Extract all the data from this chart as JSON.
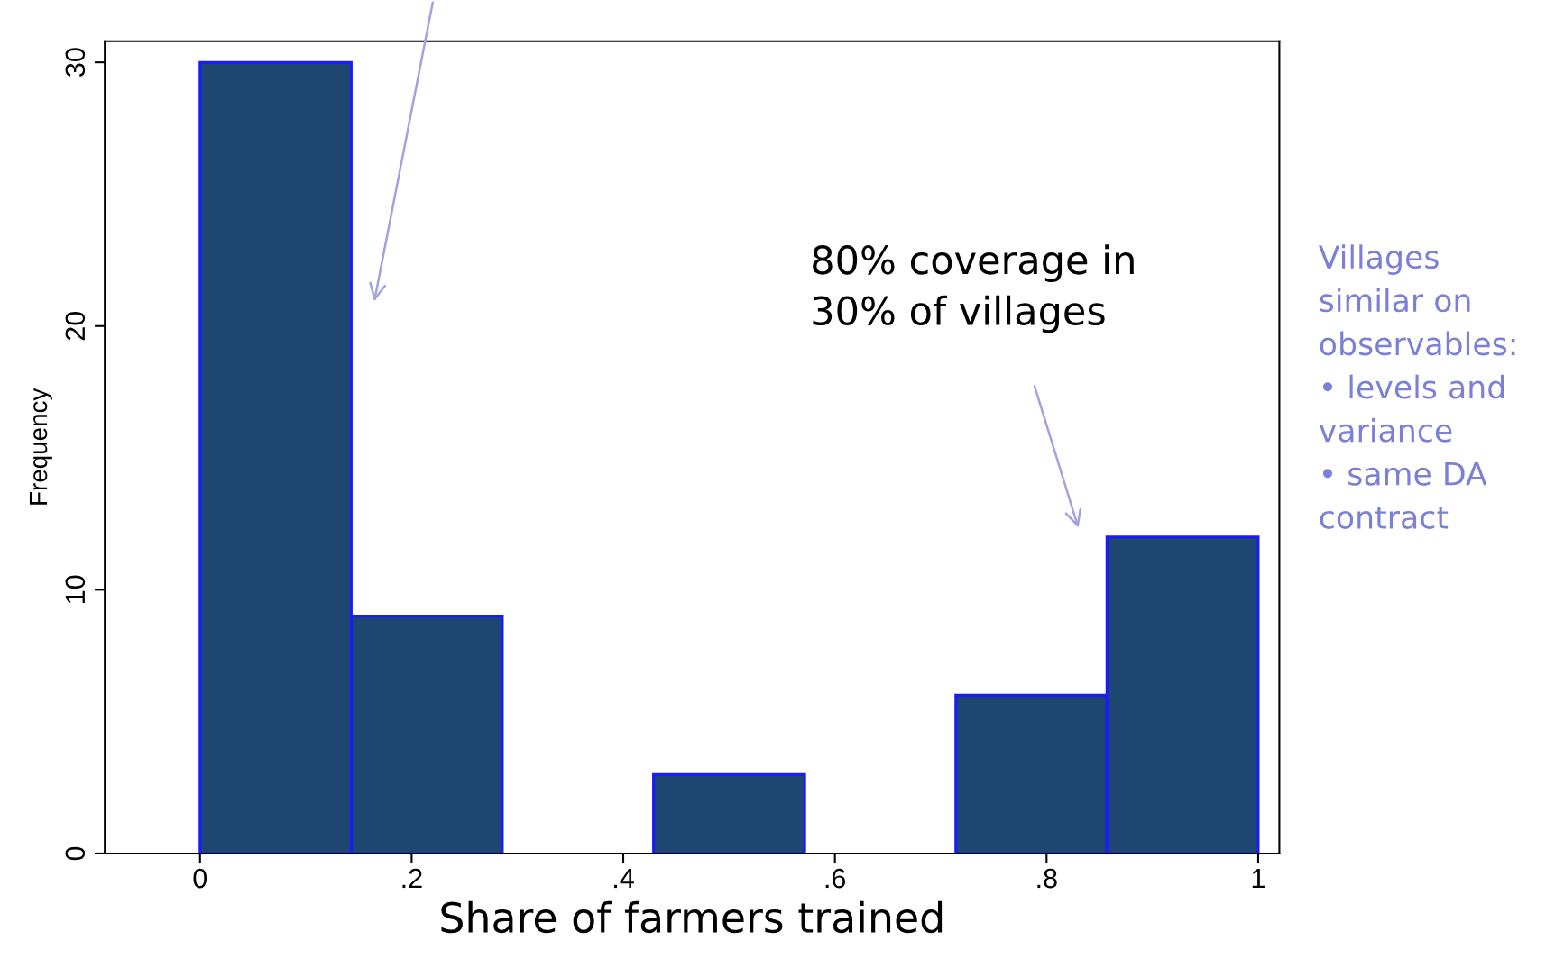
{
  "chart_data": {
    "type": "histogram",
    "xlabel": "Share of farmers trained",
    "ylabel": "Frequency",
    "bins": [
      0,
      0.1429,
      0.2857,
      0.4286,
      0.5714,
      0.7143,
      0.8571,
      1
    ],
    "values": [
      30,
      9,
      0,
      3,
      0,
      6,
      12
    ],
    "color": "#1d4670",
    "xlim": [
      -0.09,
      1.02
    ],
    "xticks": [
      {
        "value": 0,
        "label": "0"
      },
      {
        "value": 0.2,
        "label": ".2"
      },
      {
        "value": 0.4,
        "label": ".4"
      },
      {
        "value": 0.6,
        "label": ".6"
      },
      {
        "value": 0.8,
        "label": ".8"
      },
      {
        "value": 1,
        "label": "1"
      }
    ],
    "ylim": [
      0,
      30.8
    ],
    "yticks": [
      0,
      10,
      20,
      30
    ],
    "grid": false,
    "legend": false,
    "annotations": [
      "80% coverage in\n30% of villages",
      "Villages\nsimilar on\nobservables:\n• levels and\nvariance\n• same DA\ncontract"
    ]
  }
}
